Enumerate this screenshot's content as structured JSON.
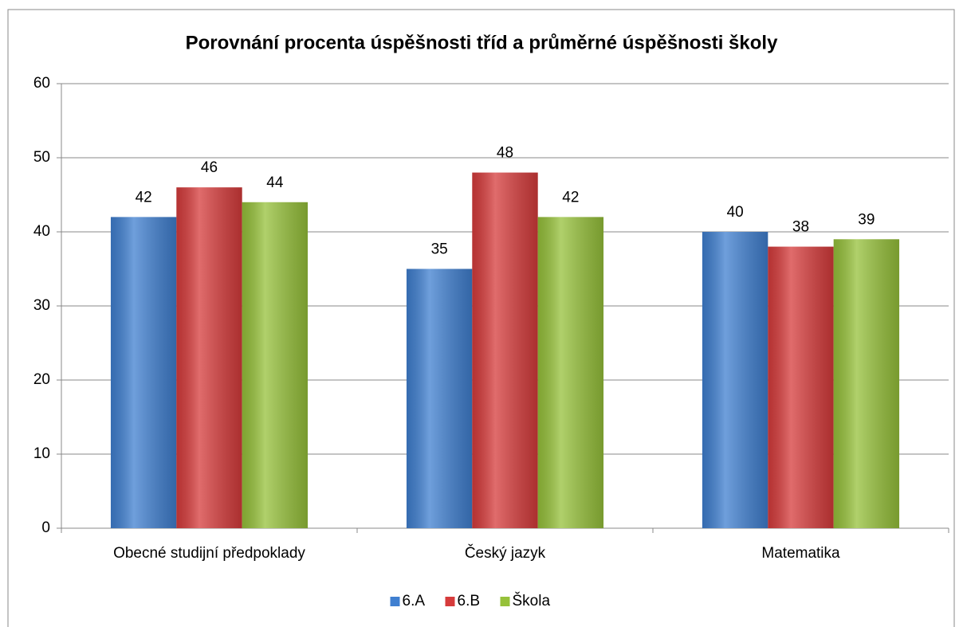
{
  "chart_data": {
    "type": "bar",
    "title": "Porovnání procenta úspěšnosti tříd a průměrné úspěšnosti školy",
    "categories": [
      "Obecné studijní předpoklady",
      "Český jazyk",
      "Matematika"
    ],
    "series": [
      {
        "name": "6.A",
        "color": "#3f7fd0",
        "values": [
          42,
          35,
          40
        ]
      },
      {
        "name": "6.B",
        "color": "#d63b3b",
        "values": [
          46,
          48,
          38
        ]
      },
      {
        "name": "Škola",
        "color": "#96c13a",
        "values": [
          44,
          42,
          39
        ]
      }
    ],
    "ylim": [
      0,
      60
    ],
    "yticks": [
      0,
      10,
      20,
      30,
      40,
      50,
      60
    ],
    "grid": true,
    "legend": "bottom"
  }
}
